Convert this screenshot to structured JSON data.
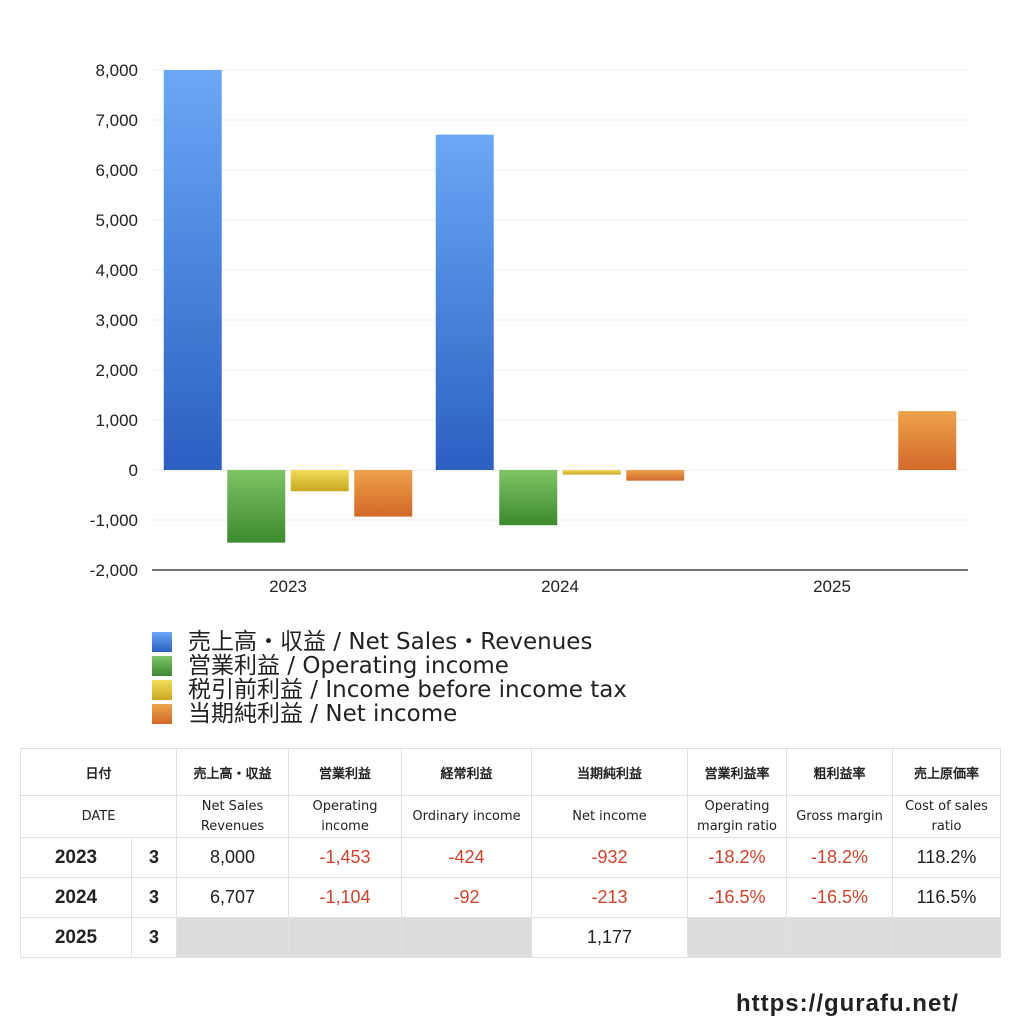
{
  "chart_data": {
    "type": "bar",
    "categories": [
      "2023",
      "2024",
      "2025"
    ],
    "series": [
      {
        "name": "売上高・収益 / Net Sales・Revenues",
        "values": [
          8000,
          6707,
          null
        ],
        "color": "#3a7ee0"
      },
      {
        "name": "営業利益 / Operating income",
        "values": [
          -1453,
          -1104,
          null
        ],
        "color": "#4a9a3a"
      },
      {
        "name": "税引前利益 / Income before income tax",
        "values": [
          -424,
          -92,
          null
        ],
        "color": "#d9bf30"
      },
      {
        "name": "当期純利益 / Net income",
        "values": [
          -932,
          -213,
          1177
        ],
        "color": "#de7a2c"
      }
    ],
    "ylim": [
      -2000,
      8000
    ],
    "yticks": [
      -2000,
      -1000,
      0,
      1000,
      2000,
      3000,
      4000,
      5000,
      6000,
      7000,
      8000
    ],
    "ytick_labels": [
      "-2,000",
      "-1,000",
      "0",
      "1,000",
      "2,000",
      "3,000",
      "4,000",
      "5,000",
      "6,000",
      "7,000",
      "8,000"
    ],
    "grid": true,
    "legend_position": "bottom"
  },
  "legend": [
    "売上高・収益 / Net Sales・Revenues",
    "営業利益 / Operating income",
    "税引前利益 / Income before income tax",
    "当期純利益 / Net income"
  ],
  "table": {
    "header_ja": [
      "日付",
      "売上高・収益",
      "営業利益",
      "経常利益",
      "当期純利益",
      "営業利益率",
      "粗利益率",
      "売上原価率"
    ],
    "header_en": [
      "DATE",
      "Net Sales Revenues",
      "Operating income",
      "Ordinary income",
      "Net income",
      "Operating margin ratio",
      "Gross margin",
      "Cost of sales ratio"
    ],
    "rows": [
      {
        "year": "2023",
        "month": "3",
        "sales": "8,000",
        "op": "-1,453",
        "ord": "-424",
        "net": "-932",
        "opm": "-18.2%",
        "gm": "-18.2%",
        "cos": "118.2%"
      },
      {
        "year": "2024",
        "month": "3",
        "sales": "6,707",
        "op": "-1,104",
        "ord": "-92",
        "net": "-213",
        "opm": "-16.5%",
        "gm": "-16.5%",
        "cos": "116.5%"
      },
      {
        "year": "2025",
        "month": "3",
        "net": "1,177"
      }
    ]
  },
  "site": "https://gurafu.net/"
}
